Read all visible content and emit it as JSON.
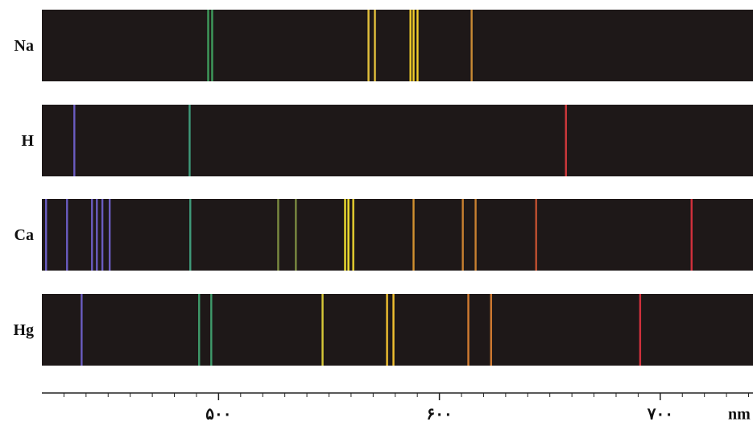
{
  "chart_data": {
    "type": "spectrum",
    "x_unit": "nm",
    "xlim": [
      420,
      742
    ],
    "xticks": [
      {
        "value": 500,
        "label": "۵۰۰"
      },
      {
        "value": 600,
        "label": "۶۰۰"
      },
      {
        "value": 700,
        "label": "۷۰۰"
      }
    ],
    "minor_ticks": [
      430,
      440,
      450,
      460,
      470,
      480,
      490,
      510,
      520,
      530,
      540,
      550,
      560,
      570,
      580,
      590,
      610,
      620,
      630,
      640,
      650,
      660,
      670,
      680,
      690,
      710,
      720,
      730,
      740
    ],
    "series": [
      {
        "name": "Na",
        "values": [
          495.3,
          497.1,
          567.9,
          570.8,
          586.9,
          588.3,
          590.1,
          614.6
        ],
        "colors": [
          "#3f9a5c",
          "#3f9a5c",
          "#e2c03c",
          "#e2c03c",
          "#f0cc2a",
          "#f0cc2a",
          "#f0cc2a",
          "#c98a34"
        ]
      },
      {
        "name": "H",
        "values": [
          434.7,
          486.9,
          657.3
        ],
        "colors": [
          "#6a5cc0",
          "#3f9a7a",
          "#d0383c"
        ]
      },
      {
        "name": "Ca",
        "values": [
          421.9,
          431.4,
          442.7,
          444.9,
          447.4,
          450.7,
          487.2,
          527,
          535,
          557.3,
          558.8,
          561,
          588.3,
          610.6,
          616.4,
          643.8,
          714.2
        ],
        "colors": [
          "#6a5cc0",
          "#6a5cc0",
          "#6a5cc0",
          "#6a5cc0",
          "#6a5cc0",
          "#6a5cc0",
          "#3f9a7a",
          "#7a8a40",
          "#7a8a40",
          "#f0e030",
          "#f0e030",
          "#e8d030",
          "#d09030",
          "#c88030",
          "#c88030",
          "#c05030",
          "#d0303c"
        ]
      },
      {
        "name": "Hg",
        "values": [
          438,
          491.2,
          496.7,
          547.1,
          576.3,
          579.2,
          613.1,
          623.4,
          690.9
        ],
        "colors": [
          "#6a5cc0",
          "#3f9a6a",
          "#3f9a6a",
          "#d8c838",
          "#f0c030",
          "#f0c030",
          "#d07a30",
          "#d07a30",
          "#d0303c"
        ]
      }
    ]
  }
}
